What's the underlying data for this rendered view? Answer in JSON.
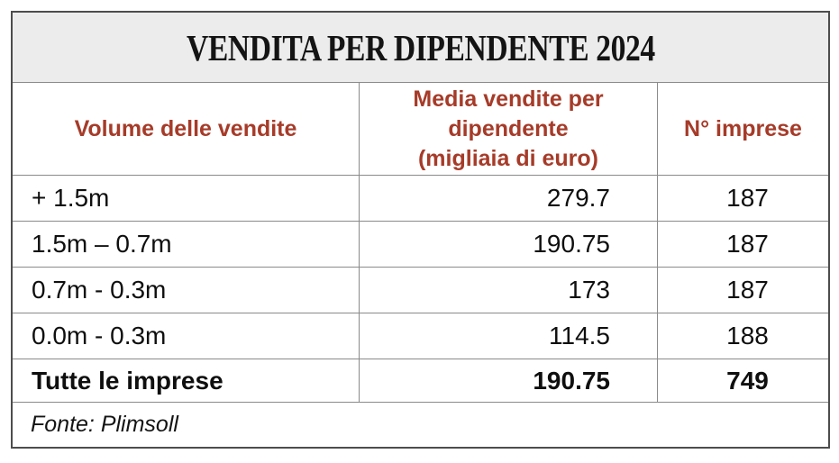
{
  "title": "VENDITA PER DIPENDENTE 2024",
  "header": {
    "col1": "Volume delle vendite",
    "col2_lines": [
      "Media vendite per",
      "dipendente",
      "(migliaia di euro)"
    ],
    "col3": "N° imprese"
  },
  "rows": [
    {
      "volume": "+ 1.5m",
      "media": "279.7",
      "firms": "187"
    },
    {
      "volume": "1.5m – 0.7m",
      "media": "190.75",
      "firms": "187"
    },
    {
      "volume": "0.7m - 0.3m",
      "media": "173",
      "firms": "187"
    },
    {
      "volume": "0.0m - 0.3m",
      "media": "114.5",
      "firms": "188"
    },
    {
      "volume": "Tutte le imprese",
      "media": "190.75",
      "firms": "749"
    }
  ],
  "footer": {
    "source": "Fonte: Plimsoll"
  },
  "colors": {
    "header_text": "#a63b29",
    "title_bg": "#ececec",
    "grid_line": "#8a8a8a",
    "outer_border": "#4d4d4d"
  }
}
